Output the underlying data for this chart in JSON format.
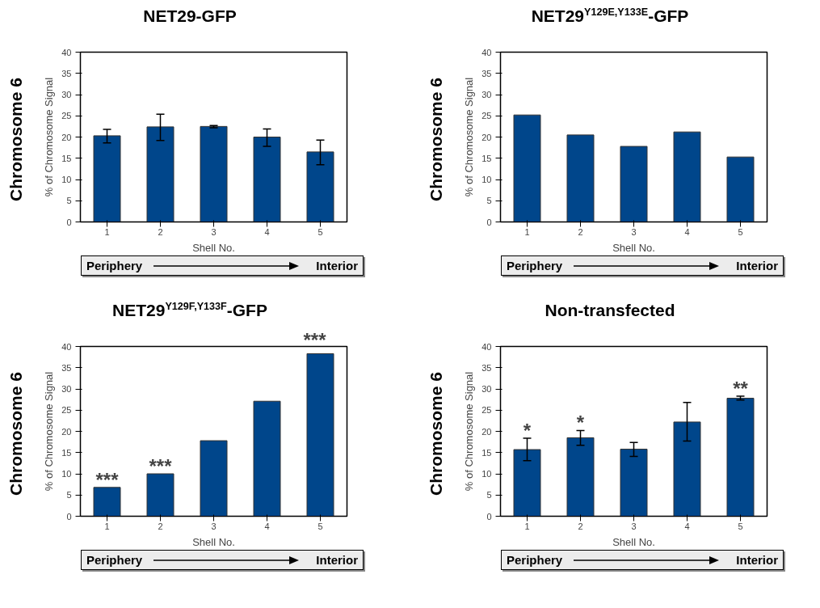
{
  "chart_data": [
    {
      "type": "bar",
      "title": "NET29-GFP",
      "xlabel": "Shell No.",
      "ylabel": "% of Chromosome Signal",
      "categories": [
        "1",
        "2",
        "3",
        "4",
        "5"
      ],
      "values": [
        20.3,
        22.4,
        22.5,
        20.0,
        16.5
      ],
      "errors": [
        [
          18.6,
          21.8
        ],
        [
          19.2,
          25.4
        ],
        [
          22.2,
          22.7
        ],
        [
          17.8,
          21.9
        ],
        [
          13.5,
          19.3
        ]
      ],
      "color": "#00468b",
      "ylim": [
        0,
        40
      ],
      "yticks": [
        0,
        5,
        10,
        15,
        20,
        25,
        30,
        35,
        40
      ],
      "grid": false,
      "annotations": [
        "Chromosome 6",
        "Periphery",
        "Interior"
      ]
    },
    {
      "type": "bar",
      "title": "NET29$^{Y129E,Y133E}$-GFP",
      "xlabel": "Shell No.",
      "ylabel": "% of Chromosome Signal",
      "categories": [
        "1",
        "2",
        "3",
        "4",
        "5"
      ],
      "values": [
        25.2,
        20.5,
        17.8,
        21.2,
        15.3
      ],
      "color": "#00468b",
      "ylim": [
        0,
        40
      ],
      "yticks": [
        0,
        5,
        10,
        15,
        20,
        25,
        30,
        35,
        40
      ],
      "grid": false,
      "annotations": [
        "Chromosome 6",
        "Periphery",
        "Interior"
      ]
    },
    {
      "type": "bar",
      "title": "NET29$^{Y129F,Y133F}$-GFP",
      "xlabel": "Shell No.",
      "ylabel": "% of Chromosome Signal",
      "categories": [
        "1",
        "2",
        "3",
        "4",
        "5"
      ],
      "values": [
        6.8,
        10.0,
        17.8,
        27.1,
        38.3
      ],
      "color": "#00468b",
      "ylim": [
        0,
        40
      ],
      "yticks": [
        0,
        5,
        10,
        15,
        20,
        25,
        30,
        35,
        40
      ],
      "grid": false,
      "annotations": [
        "Chromosome 6",
        "Periphery",
        "Interior",
        {
          "text": "***",
          "x": "1",
          "y": 6.8
        },
        {
          "text": "***",
          "x": "2",
          "y": 10.0
        },
        {
          "text": "***",
          "x": "5",
          "y": 38.3
        }
      ]
    },
    {
      "type": "bar",
      "title": "Non-transfected",
      "xlabel": "Shell No.",
      "ylabel": "% of Chromosome Signal",
      "categories": [
        "1",
        "2",
        "3",
        "4",
        "5"
      ],
      "values": [
        15.7,
        18.5,
        15.8,
        22.2,
        27.8
      ],
      "errors": [
        [
          13.1,
          18.4
        ],
        [
          16.7,
          20.2
        ],
        [
          14.1,
          17.4
        ],
        [
          17.7,
          26.8
        ],
        [
          27.4,
          28.3
        ]
      ],
      "color": "#00468b",
      "ylim": [
        0,
        40
      ],
      "yticks": [
        0,
        5,
        10,
        15,
        20,
        25,
        30,
        35,
        40
      ],
      "grid": false,
      "annotations": [
        "Chromosome 6",
        "Periphery",
        "Interior",
        {
          "text": "*",
          "x": "1",
          "y": 18.4
        },
        {
          "text": "*",
          "x": "2",
          "y": 20.2
        },
        {
          "text": "**",
          "x": "5",
          "y": 28.3
        }
      ]
    }
  ]
}
